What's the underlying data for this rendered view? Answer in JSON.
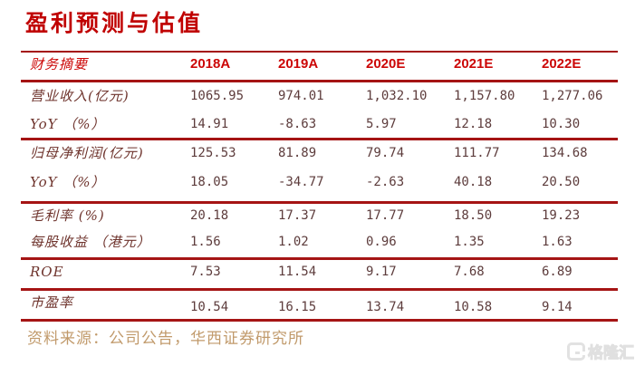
{
  "title": "盈利预测与估值",
  "table": {
    "header": [
      "财务摘要",
      "2018A",
      "2019A",
      "2020E",
      "2021E",
      "2022E"
    ],
    "rows": [
      {
        "label": "营业收入(亿元)",
        "values": [
          "1065.95",
          "974.01",
          "1,032.10",
          "1,157.80",
          "1,277.06"
        ]
      },
      {
        "label": "YoY （%）",
        "values": [
          "14.91",
          "-8.63",
          "5.97",
          "12.18",
          "10.30"
        ]
      },
      {
        "label": "归母净利润(亿元)",
        "values": [
          "125.53",
          "81.89",
          "79.74",
          "111.77",
          "134.68"
        ]
      },
      {
        "label": "YoY （%）",
        "values": [
          "18.05",
          "-34.77",
          "-2.63",
          "40.18",
          "20.50"
        ]
      },
      {
        "label": "毛利率 (%)",
        "values": [
          "20.18",
          "17.37",
          "17.77",
          "18.50",
          "19.23"
        ]
      },
      {
        "label": "每股收益 （港元）",
        "values": [
          "1.56",
          "1.02",
          "0.96",
          "1.35",
          "1.63"
        ]
      },
      {
        "label": "ROE",
        "values": [
          "7.53",
          "11.54",
          "9.17",
          "7.68",
          "6.89"
        ]
      },
      {
        "label": "市盈率",
        "values": [
          "10.54",
          "16.15",
          "13.74",
          "10.58",
          "9.14"
        ]
      }
    ]
  },
  "source": "资料来源：公司公告，华西证券研究所",
  "watermark": "格隆汇",
  "colors": {
    "line": "#a51414",
    "title": "#c00000",
    "header": "#cc0606",
    "label": "#6e332c",
    "number": "#5d3c3c",
    "source": "#c19a6b"
  }
}
